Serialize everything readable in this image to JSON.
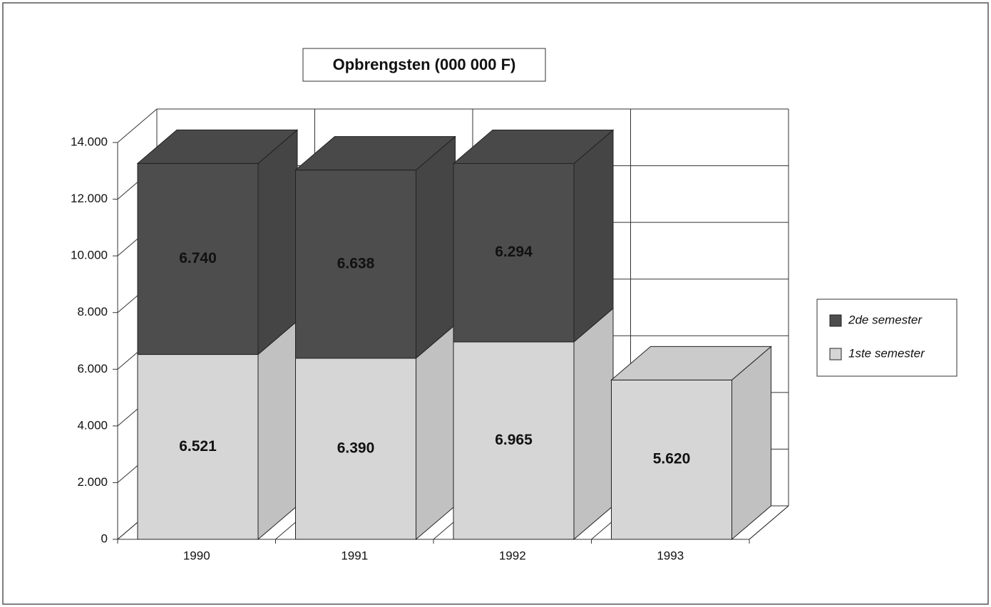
{
  "chart_data": {
    "type": "bar3d_stacked",
    "title": "Opbrengsten (000 000 F)",
    "categories": [
      "1990",
      "1991",
      "1992",
      "1993"
    ],
    "series": [
      {
        "name": "1ste semester",
        "color": "#d6d6d6",
        "values": [
          6521,
          6390,
          6965,
          5620
        ],
        "value_labels": [
          "6.521",
          "6.390",
          "6.965",
          "5.620"
        ]
      },
      {
        "name": "2de semester",
        "color": "#4d4d4d",
        "values": [
          6740,
          6638,
          6294,
          null
        ],
        "value_labels": [
          "6.740",
          "6.638",
          "6.294",
          null
        ]
      }
    ],
    "ylim": [
      0,
      14000
    ],
    "yticks": [
      0,
      {
        "value": 2000,
        "label": "2.000"
      },
      {
        "value": 4000,
        "label": "4.000"
      },
      {
        "value": 6000,
        "label": "6.000"
      },
      {
        "value": 8000,
        "label": "8.000"
      },
      {
        "value": 10000,
        "label": "10.000"
      },
      {
        "value": 12000,
        "label": "12.000"
      },
      {
        "value": 14000,
        "label": "14.000"
      }
    ],
    "grid": true,
    "legend": "right"
  }
}
